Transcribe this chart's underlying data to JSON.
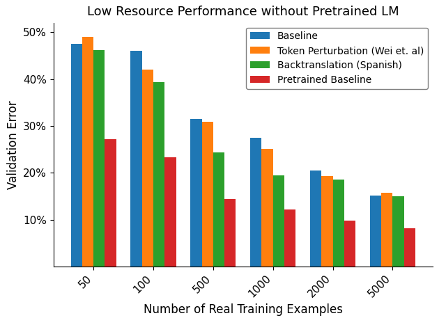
{
  "title": "Low Resource Performance without Pretrained LM",
  "xlabel": "Number of Real Training Examples",
  "ylabel": "Validation Error",
  "x_categories": [
    50,
    100,
    500,
    1000,
    2000,
    5000
  ],
  "series": {
    "Baseline": [
      0.475,
      0.46,
      0.315,
      0.275,
      0.205,
      0.152
    ],
    "Token Perturbation (Wei et. al)": [
      0.49,
      0.42,
      0.308,
      0.251,
      0.193,
      0.158
    ],
    "Backtranslation (Spanish)": [
      0.462,
      0.394,
      0.244,
      0.195,
      0.186,
      0.15
    ],
    "Pretrained Baseline": [
      0.272,
      0.233,
      0.144,
      0.122,
      0.098,
      0.082
    ]
  },
  "colors": {
    "Baseline": "#1f77b4",
    "Token Perturbation (Wei et. al)": "#ff7f0e",
    "Backtranslation (Spanish)": "#2ca02c",
    "Pretrained Baseline": "#d62728"
  },
  "ylim": [
    0.0,
    0.52
  ],
  "yticks": [
    0.1,
    0.2,
    0.3,
    0.4,
    0.5
  ],
  "ytick_labels": [
    "10%",
    "20%",
    "30%",
    "40%",
    "50%"
  ],
  "bar_width": 0.19,
  "legend_loc": "upper right",
  "background_color": "#ffffff",
  "title_fontsize": 13,
  "label_fontsize": 12,
  "tick_fontsize": 11,
  "legend_fontsize": 10
}
